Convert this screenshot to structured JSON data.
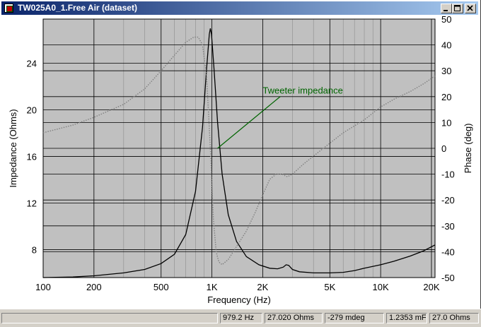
{
  "window": {
    "title": "TW025A0_1.Free Air (dataset)",
    "controls": [
      "minimize-icon",
      "maximize-icon",
      "close-icon"
    ]
  },
  "chart_data": {
    "type": "line",
    "xscale": "log",
    "xlim": [
      100,
      21000
    ],
    "x_ticks": [
      100,
      200,
      500,
      1000,
      2000,
      5000,
      10000,
      20000
    ],
    "x_tick_labels": [
      "100",
      "200",
      "500",
      "1K",
      "2K",
      "5K",
      "10K",
      "20K"
    ],
    "xlabel": "Frequency (Hz)",
    "ylim": [
      5.6,
      27.8
    ],
    "y_ticks": [
      8,
      12,
      16,
      20,
      24
    ],
    "y_tick_labels": [
      "8",
      "12",
      "16",
      "20",
      "24"
    ],
    "ylabel": "Impedance (Ohms)",
    "y2lim": [
      -50,
      50
    ],
    "y2_ticks": [
      -50,
      -40,
      -30,
      -20,
      -10,
      0,
      10,
      20,
      30,
      40,
      50
    ],
    "y2_tick_labels": [
      "-50",
      "-40",
      "-30",
      "-20",
      "-10",
      "0",
      "10",
      "20",
      "30",
      "40",
      "50"
    ],
    "y2label": "Phase (deg)",
    "grid": true,
    "series": [
      {
        "name": "",
        "axis": "left",
        "style": "solid",
        "color": "#000000",
        "x": [
          100,
          150,
          200,
          300,
          400,
          500,
          600,
          700,
          800,
          880,
          930,
          965,
          979.2,
          995,
          1030,
          1080,
          1150,
          1250,
          1400,
          1600,
          1900,
          2200,
          2450,
          2650,
          2750,
          2850,
          3000,
          3300,
          4000,
          5000,
          6000,
          7000,
          8000,
          10000,
          12000,
          15000,
          18000,
          21000
        ],
        "y": [
          5.6,
          5.65,
          5.75,
          6.0,
          6.3,
          6.8,
          7.6,
          9.3,
          13.0,
          18.5,
          23.5,
          26.5,
          27.0,
          26.5,
          23.5,
          19.0,
          14.5,
          11.0,
          8.7,
          7.4,
          6.7,
          6.4,
          6.35,
          6.5,
          6.7,
          6.65,
          6.3,
          6.1,
          6.0,
          6.0,
          6.05,
          6.2,
          6.4,
          6.7,
          7.0,
          7.45,
          7.9,
          8.4
        ]
      },
      {
        "name": "",
        "axis": "right",
        "style": "dotted",
        "color": "#808080",
        "x": [
          100,
          150,
          200,
          300,
          400,
          500,
          600,
          700,
          780,
          830,
          880,
          930,
          979.2,
          1020,
          1060,
          1100,
          1150,
          1250,
          1400,
          1600,
          1800,
          2000,
          2200,
          2400,
          2600,
          2800,
          3000,
          3500,
          4000,
          5000,
          6000,
          8000,
          10000,
          12000,
          15000,
          18000,
          21000
        ],
        "y": [
          6,
          9,
          12,
          17,
          23,
          30,
          36,
          41,
          43,
          43,
          40,
          28,
          0,
          -27,
          -40,
          -44,
          -45,
          -43,
          -38,
          -32,
          -25,
          -18,
          -12,
          -10,
          -10,
          -11,
          -10,
          -6,
          -3,
          2,
          6,
          11,
          16,
          19,
          22,
          25,
          28
        ]
      }
    ],
    "annotations": [
      {
        "text": "Tweeter impedance",
        "color": "#006400",
        "x": 1080,
        "y": 16.7,
        "label_x": 2100,
        "label_y": 21.4
      }
    ]
  },
  "statusbar": {
    "cells": [
      "",
      "979.2 Hz",
      "27.020 Ohms",
      "-279 mdeg",
      "",
      "1.2353 mF",
      "27.0 Ohms"
    ]
  }
}
